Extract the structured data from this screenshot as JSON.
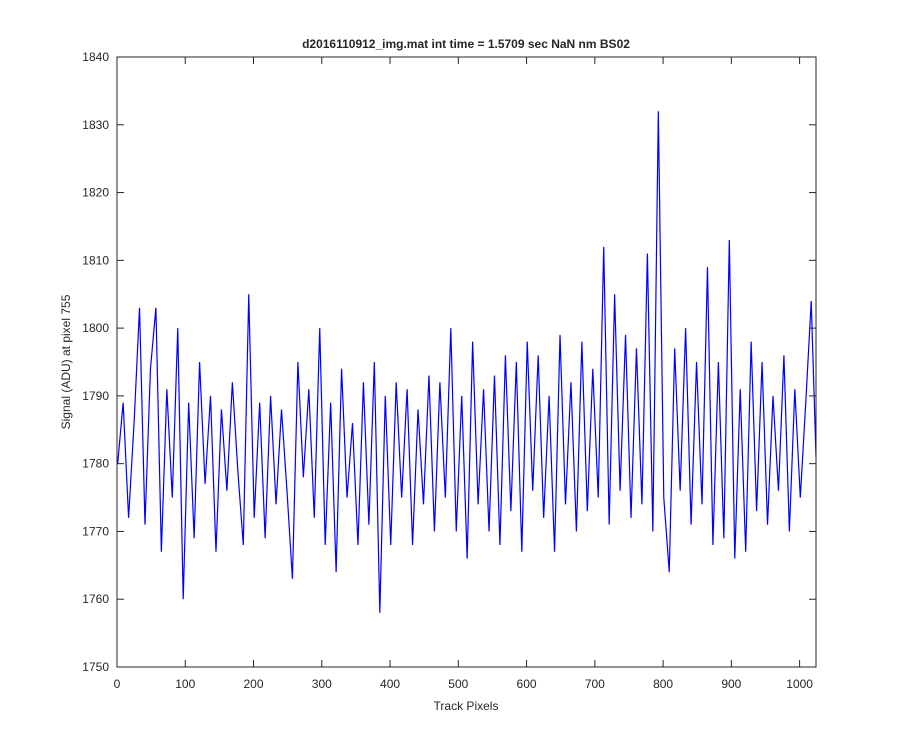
{
  "chart_data": {
    "type": "line",
    "title": "d2016110912_img.mat int time = 1.5709 sec  NaN nm BS02",
    "xlabel": "Track Pixels",
    "ylabel": "Signal (ADU) at pixel 755",
    "xlim": [
      0,
      1024
    ],
    "ylim": [
      1750,
      1840
    ],
    "xticks": [
      0,
      100,
      200,
      300,
      400,
      500,
      600,
      700,
      800,
      900,
      1000
    ],
    "yticks": [
      1750,
      1760,
      1770,
      1780,
      1790,
      1800,
      1810,
      1820,
      1830,
      1840
    ],
    "x": [
      1,
      9,
      17,
      25,
      33,
      41,
      49,
      57,
      65,
      73,
      81,
      89,
      97,
      105,
      113,
      121,
      129,
      137,
      145,
      153,
      161,
      169,
      177,
      185,
      193,
      201,
      209,
      217,
      225,
      233,
      241,
      249,
      257,
      265,
      273,
      281,
      289,
      297,
      305,
      313,
      321,
      329,
      337,
      345,
      353,
      361,
      369,
      377,
      385,
      393,
      401,
      409,
      417,
      425,
      433,
      441,
      449,
      457,
      465,
      473,
      481,
      489,
      497,
      505,
      513,
      521,
      529,
      537,
      545,
      553,
      561,
      569,
      577,
      585,
      593,
      601,
      609,
      617,
      625,
      633,
      641,
      649,
      657,
      665,
      673,
      681,
      689,
      697,
      705,
      713,
      721,
      729,
      737,
      745,
      753,
      761,
      769,
      777,
      785,
      793,
      801,
      809,
      817,
      825,
      833,
      841,
      849,
      857,
      865,
      873,
      881,
      889,
      897,
      905,
      913,
      921,
      929,
      937,
      945,
      953,
      961,
      969,
      977,
      985,
      993,
      1001,
      1009,
      1017,
      1024
    ],
    "series": [
      {
        "color": "#0000ff",
        "values": [
          1780,
          1789,
          1772,
          1786,
          1803,
          1771,
          1794,
          1803,
          1767,
          1791,
          1775,
          1800,
          1760,
          1789,
          1769,
          1795,
          1777,
          1790,
          1767,
          1788,
          1776,
          1792,
          1779,
          1768,
          1805,
          1772,
          1789,
          1769,
          1790,
          1774,
          1788,
          1776,
          1763,
          1795,
          1778,
          1791,
          1772,
          1800,
          1768,
          1789,
          1764,
          1794,
          1775,
          1786,
          1768,
          1792,
          1771,
          1795,
          1758,
          1790,
          1768,
          1792,
          1775,
          1791,
          1768,
          1788,
          1774,
          1793,
          1770,
          1792,
          1775,
          1800,
          1770,
          1790,
          1766,
          1798,
          1774,
          1791,
          1770,
          1793,
          1768,
          1796,
          1773,
          1795,
          1767,
          1798,
          1776,
          1796,
          1772,
          1790,
          1767,
          1799,
          1774,
          1792,
          1770,
          1798,
          1773,
          1794,
          1775,
          1812,
          1771,
          1805,
          1776,
          1799,
          1772,
          1797,
          1774,
          1811,
          1770,
          1832,
          1775,
          1764,
          1797,
          1776,
          1800,
          1771,
          1795,
          1774,
          1809,
          1768,
          1795,
          1769,
          1813,
          1766,
          1791,
          1767,
          1798,
          1773,
          1795,
          1771,
          1790,
          1776,
          1796,
          1770,
          1791,
          1775,
          1789,
          1804,
          1781
        ]
      }
    ],
    "grid": false
  }
}
